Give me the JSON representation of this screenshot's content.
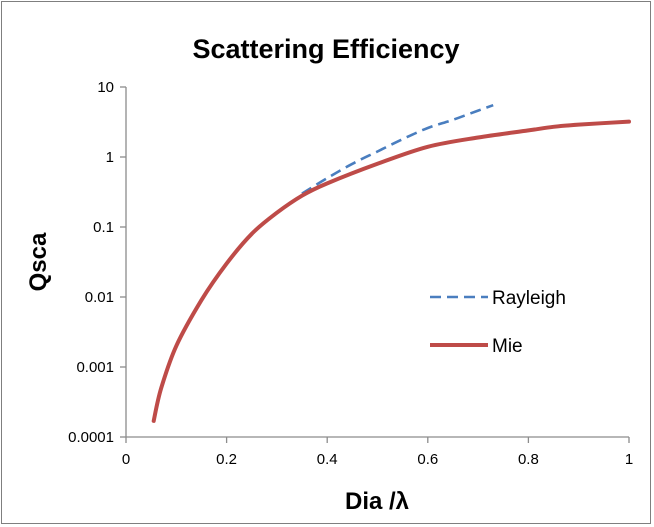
{
  "chart_data": {
    "type": "line",
    "title": "Scattering Efficiency",
    "xlabel": "Dia /λ",
    "ylabel": "Qsca",
    "xlim": [
      0,
      1
    ],
    "ylim": [
      0.0001,
      10
    ],
    "yscale": "log",
    "grid": false,
    "legend_position": "center-right",
    "x_ticks": [
      {
        "value": 0,
        "label": "0"
      },
      {
        "value": 0.2,
        "label": "0.2"
      },
      {
        "value": 0.4,
        "label": "0.4"
      },
      {
        "value": 0.6,
        "label": "0.6"
      },
      {
        "value": 0.8,
        "label": "0.8"
      },
      {
        "value": 1,
        "label": "1"
      }
    ],
    "y_ticks": [
      {
        "value": 0.0001,
        "label": "0.0001"
      },
      {
        "value": 0.001,
        "label": "0.001"
      },
      {
        "value": 0.01,
        "label": "0.01"
      },
      {
        "value": 0.1,
        "label": "0.1"
      },
      {
        "value": 1,
        "label": "1"
      },
      {
        "value": 10,
        "label": "10"
      }
    ],
    "series": [
      {
        "name": "Rayleigh",
        "color": "#4a7ebf",
        "style": "dashed",
        "x": [
          0.35,
          0.4,
          0.45,
          0.5,
          0.55,
          0.6,
          0.65,
          0.7,
          0.73
        ],
        "y": [
          0.3,
          0.5,
          0.8,
          1.2,
          1.8,
          2.6,
          3.4,
          4.6,
          5.5
        ]
      },
      {
        "name": "Mie",
        "color": "#be4b48",
        "style": "solid",
        "x": [
          0.055,
          0.07,
          0.1,
          0.15,
          0.2,
          0.25,
          0.3,
          0.35,
          0.4,
          0.5,
          0.6,
          0.7,
          0.8,
          0.85,
          0.9,
          1.0
        ],
        "y": [
          0.00017,
          0.0005,
          0.002,
          0.009,
          0.03,
          0.08,
          0.16,
          0.28,
          0.42,
          0.8,
          1.4,
          1.9,
          2.4,
          2.7,
          2.9,
          3.2
        ]
      }
    ]
  }
}
